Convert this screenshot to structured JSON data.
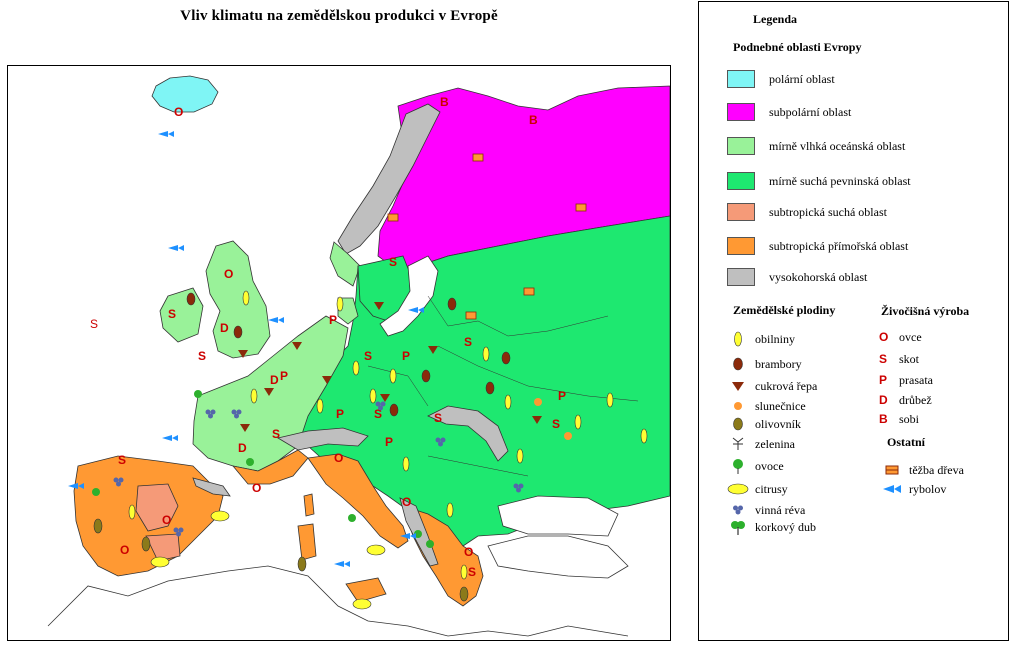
{
  "title": "Vliv klimatu na zemědělskou produkci v Evropě",
  "legend": {
    "heading": "Legenda",
    "climate_heading": "Podnebné oblasti Evropy",
    "climate": [
      {
        "label": "polární oblast",
        "color": "#7ff5f5"
      },
      {
        "label": "subpolární oblast",
        "color": "#ff00ff"
      },
      {
        "label": "mírně vlhká oceánská oblast",
        "color": "#99f299"
      },
      {
        "label": "mírně suchá pevninská oblast",
        "color": "#1ee870"
      },
      {
        "label": "subtropická suchá oblast",
        "color": "#f59a78"
      },
      {
        "label": "subtropická přímořská oblast",
        "color": "#ff9933"
      },
      {
        "label": "vysokohorská oblast",
        "color": "#bfbfbf"
      }
    ],
    "crops_heading": "Zemědělské plodiny",
    "crops": [
      {
        "label": "obilniny",
        "icon": "grain-icon"
      },
      {
        "label": "brambory",
        "icon": "potato-icon"
      },
      {
        "label": "cukrová řepa",
        "icon": "sugar-beet-icon"
      },
      {
        "label": "slunečnice",
        "icon": "sunflower-icon"
      },
      {
        "label": "olivovník",
        "icon": "olive-icon"
      },
      {
        "label": "zelenina",
        "icon": "vegetable-icon"
      },
      {
        "label": "ovoce",
        "icon": "fruit-tree-icon"
      },
      {
        "label": "citrusy",
        "icon": "citrus-icon"
      },
      {
        "label": "vinná réva",
        "icon": "grape-icon"
      },
      {
        "label": "korkový dub",
        "icon": "cork-oak-icon"
      }
    ],
    "livestock_heading": "Živočišná výroba",
    "livestock": [
      {
        "symbol": "O",
        "label": "ovce"
      },
      {
        "symbol": "S",
        "label": "skot"
      },
      {
        "symbol": "P",
        "label": "prasata"
      },
      {
        "symbol": "D",
        "label": "drůbež"
      },
      {
        "symbol": "B",
        "label": "sobi"
      }
    ],
    "other_heading": "Ostatní",
    "other": [
      {
        "label": "těžba dřeva",
        "icon": "timber-icon"
      },
      {
        "label": "rybolov",
        "icon": "fish-icon"
      }
    ]
  },
  "map_labels": [
    {
      "t": "O"
    },
    {
      "t": "B"
    },
    {
      "t": "B"
    },
    {
      "t": "S"
    },
    {
      "t": "O"
    },
    {
      "t": "S"
    },
    {
      "t": "D"
    },
    {
      "t": "S"
    },
    {
      "t": "S"
    },
    {
      "t": "P"
    },
    {
      "t": "S"
    },
    {
      "t": "P"
    },
    {
      "t": "S"
    },
    {
      "t": "D"
    },
    {
      "t": "P"
    },
    {
      "t": "P"
    },
    {
      "t": "S"
    },
    {
      "t": "P"
    },
    {
      "t": "S"
    },
    {
      "t": "P"
    },
    {
      "t": "S"
    },
    {
      "t": "D"
    },
    {
      "t": "S"
    },
    {
      "t": "S"
    },
    {
      "t": "O"
    },
    {
      "t": "O"
    },
    {
      "t": "O"
    },
    {
      "t": "O"
    },
    {
      "t": "O"
    },
    {
      "t": "S"
    },
    {
      "t": "O"
    }
  ]
}
